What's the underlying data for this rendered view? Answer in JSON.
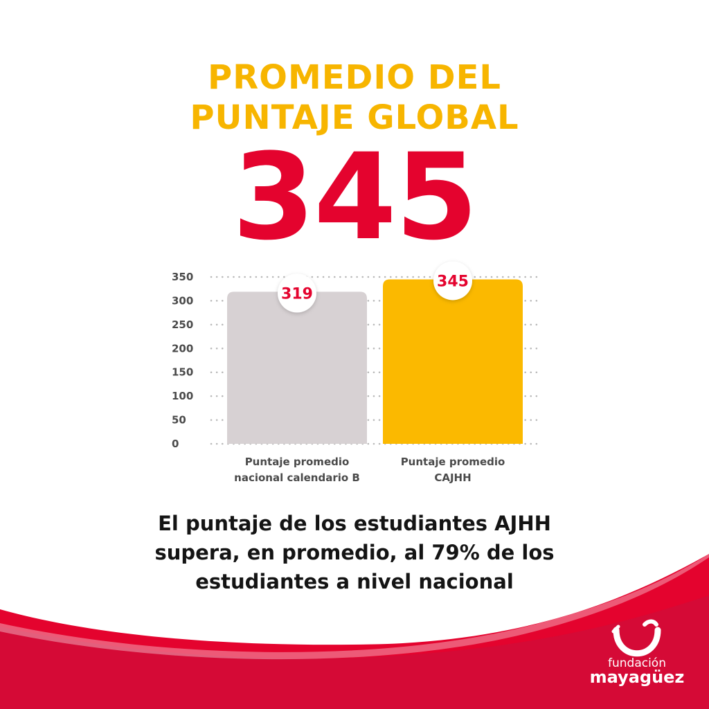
{
  "title_line1": "PROMEDIO DEL",
  "title_line2": "PUNTAJE GLOBAL",
  "headline_value": "345",
  "caption": {
    "line1": "El puntaje de los estudiantes AJHH",
    "line2": "supera, en promedio, al 79% de los",
    "line3": "estudiantes a nivel nacional"
  },
  "logo": {
    "line1": "fundación",
    "line2": "mayagüez"
  },
  "colors": {
    "title": "#F7B500",
    "headline": "#E4032E",
    "bar_national": "#D7D1D3",
    "bar_cajhh": "#FBB900",
    "data_label": "#E4032E",
    "wave_red": "#E4032E",
    "wave_dark": "#C8103E"
  },
  "chart_data": {
    "type": "bar",
    "categories": [
      [
        "Puntaje promedio",
        "nacional calendario B"
      ],
      [
        "Puntaje promedio",
        "CAJHH"
      ]
    ],
    "values": [
      319,
      345
    ],
    "data_labels": [
      "319",
      "345"
    ],
    "yticks": [
      "0",
      "50",
      "100",
      "150",
      "200",
      "250",
      "300",
      "350"
    ],
    "ylim": [
      0,
      350
    ],
    "grid": "dotted",
    "title": "",
    "xlabel": "",
    "ylabel": ""
  }
}
